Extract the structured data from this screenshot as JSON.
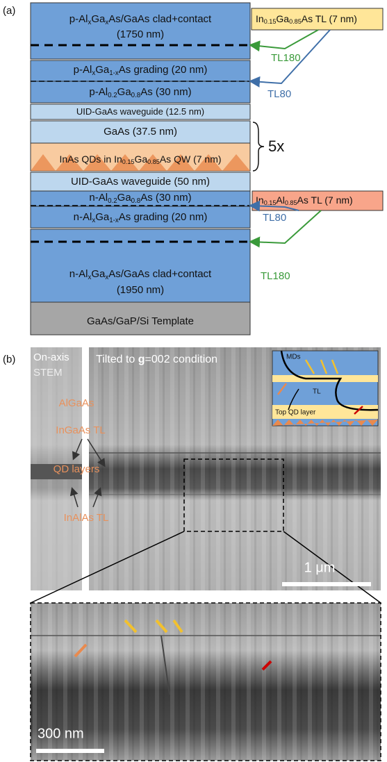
{
  "panel_a": {
    "label": "(a)",
    "layers": [
      {
        "label": [
          "p-Al",
          "x",
          "Ga",
          "x",
          "As/GaAs clad+contact"
        ],
        "line2": "(1750 nm)"
      },
      {
        "label": [
          "p-Al",
          "x",
          "Ga",
          "1-x",
          "As grading (20 nm)"
        ]
      },
      {
        "label": [
          "p-Al",
          "0.2",
          "Ga",
          "0.8",
          "As (30 nm)"
        ]
      },
      {
        "label": [
          "UID-GaAs waveguide (12.5 nm)"
        ]
      },
      {
        "label": [
          "GaAs (37.5 nm)"
        ]
      },
      {
        "label": [
          "InAs QDs in In",
          "0.15",
          "Ga",
          "0.85",
          "As QW (7 nm)"
        ]
      },
      {
        "label": [
          "UID-GaAs waveguide (50 nm)"
        ]
      },
      {
        "label": [
          "n-Al",
          "0.2",
          "Ga",
          "0.8",
          "As (30 nm)"
        ]
      },
      {
        "label": [
          "n-Al",
          "x",
          "Ga",
          "1-x",
          "As grading (20 nm)"
        ]
      },
      {
        "label": [
          "n-Al",
          "x",
          "Ga",
          "x",
          "As/GaAs clad+contact"
        ],
        "line2": "(1950 nm)"
      },
      {
        "label": [
          "GaAs/GaP/Si Template"
        ]
      }
    ],
    "repeat": "5x",
    "callouts": [
      {
        "label": [
          "In",
          "0.15",
          "Ga",
          "0.85",
          "As TL (7 nm)"
        ],
        "arrows": [
          "TL180",
          "TL80"
        ]
      },
      {
        "label": [
          "In",
          "0.15",
          "Al",
          "0.85",
          "As TL (7 nm)"
        ],
        "arrows": [
          "TL80",
          "TL180"
        ]
      }
    ]
  },
  "panel_b": {
    "label": "(b)",
    "left_title": [
      "On-axis",
      "STEM"
    ],
    "right_title": [
      "Tilted to ",
      "g",
      "=002 condition"
    ],
    "labels": [
      "AlGaAs",
      "InGaAs TL",
      "QD layers",
      "InAlAs TL"
    ],
    "inset": [
      "MDs",
      "TL",
      "Top QD layer"
    ],
    "scale_bar": "1 μm",
    "zoom_scale_bar": "300 nm"
  }
}
